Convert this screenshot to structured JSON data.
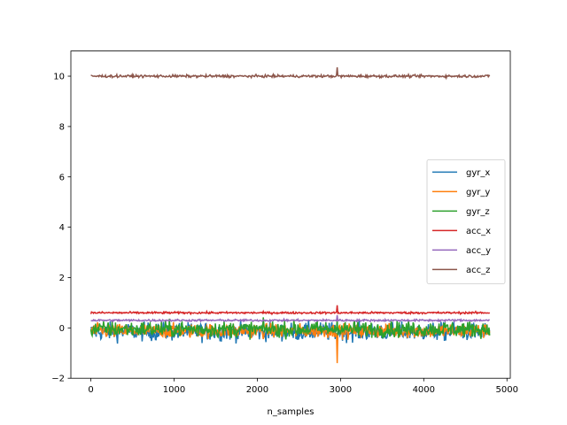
{
  "chart_data": {
    "type": "line",
    "title": "",
    "xlabel": "n_samples",
    "ylabel": "",
    "xlim": [
      -240,
      5040
    ],
    "ylim": [
      -2,
      11
    ],
    "xticks": [
      0,
      1000,
      2000,
      3000,
      4000,
      5000
    ],
    "yticks": [
      -2,
      0,
      2,
      4,
      6,
      8,
      10
    ],
    "grid": false,
    "legend": "center-right",
    "n_samples": 4800,
    "series": [
      {
        "name": "gyr_x",
        "color": "#1f77b4",
        "mean": -0.15,
        "noise": 0.18,
        "spike": {
          "x": 2960,
          "value": -0.6
        }
      },
      {
        "name": "gyr_y",
        "color": "#ff7f0e",
        "mean": -0.12,
        "noise": 0.14,
        "spike": {
          "x": 2960,
          "value": -1.4
        }
      },
      {
        "name": "gyr_z",
        "color": "#2ca02c",
        "mean": -0.05,
        "noise": 0.16,
        "spike": {
          "x": 2960,
          "value": 0.4
        }
      },
      {
        "name": "acc_x",
        "color": "#d62728",
        "mean": 0.6,
        "noise": 0.02,
        "spike": {
          "x": 2960,
          "value": 0.9
        }
      },
      {
        "name": "acc_y",
        "color": "#9467bd",
        "mean": 0.3,
        "noise": 0.02,
        "spike": {
          "x": 2960,
          "value": 0.5
        }
      },
      {
        "name": "acc_z",
        "color": "#8c564b",
        "mean": 10.0,
        "noise": 0.025,
        "spike": {
          "x": 2960,
          "value": 10.35
        }
      }
    ]
  }
}
